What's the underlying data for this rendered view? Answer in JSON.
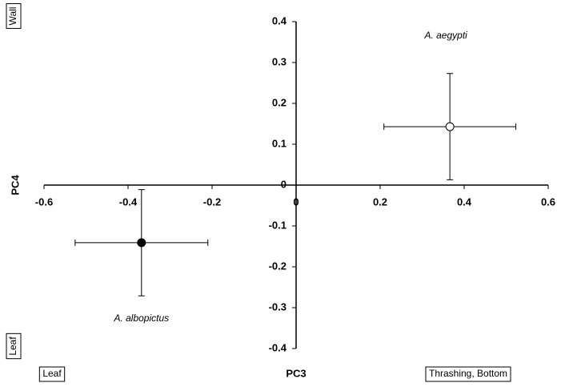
{
  "chart_data": {
    "type": "scatter",
    "xlabel": "PC3",
    "ylabel": "PC4",
    "xlim": [
      -0.6,
      0.6
    ],
    "ylim": [
      -0.4,
      0.4
    ],
    "xticks": [
      -0.6,
      -0.4,
      -0.2,
      0,
      0.2,
      0.4,
      0.6
    ],
    "yticks": [
      -0.4,
      -0.3,
      -0.2,
      -0.1,
      0,
      0.1,
      0.2,
      0.3,
      0.4
    ],
    "series": [
      {
        "name": "A. aegypti",
        "color": "#ffffff",
        "x": [
          0.366
        ],
        "values": [
          0.143
        ],
        "xerr": [
          0.157
        ],
        "yerr": [
          0.13
        ]
      },
      {
        "name": "A. albopictus",
        "color": "#000000",
        "x": [
          -0.368
        ],
        "values": [
          -0.141
        ],
        "xerr": [
          0.158
        ],
        "yerr": [
          0.13
        ]
      }
    ],
    "annotations": [
      "Wall",
      "Leaf",
      "Leaf",
      "Thrashing, Bottom"
    ]
  }
}
